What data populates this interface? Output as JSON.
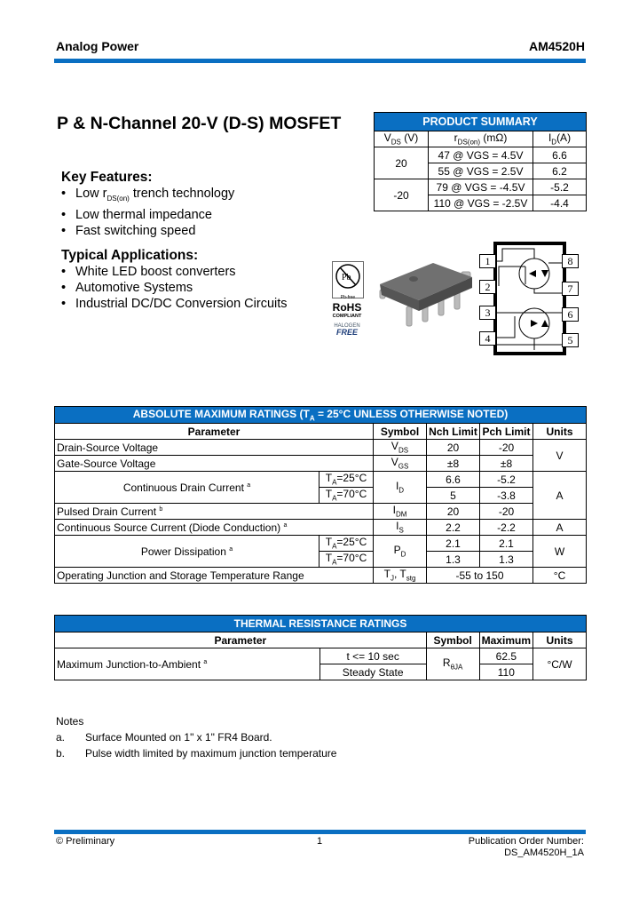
{
  "header": {
    "company": "Analog Power",
    "part": "AM4520H"
  },
  "title": "P & N-Channel 20-V (D-S) MOSFET",
  "key_features": {
    "heading": "Key Features:",
    "items": [
      "Low rDS(on) trench technology",
      "Low thermal impedance",
      "Fast switching speed"
    ]
  },
  "applications": {
    "heading": "Typical Applications:",
    "items": [
      "White LED boost converters",
      "Automotive Systems",
      "Industrial DC/DC Conversion Circuits"
    ]
  },
  "product_summary": {
    "title": "PRODUCT SUMMARY",
    "headers": [
      "VDS (V)",
      "rDS(on) (mΩ)",
      "ID(A)"
    ],
    "groups": [
      {
        "vds": "20",
        "rows": [
          [
            "47 @ VGS = 4.5V",
            "6.6"
          ],
          [
            "55 @ VGS = 2.5V",
            "6.2"
          ]
        ]
      },
      {
        "vds": "-20",
        "rows": [
          [
            "79 @ VGS = -4.5V",
            "-5.2"
          ],
          [
            "110 @ VGS = -2.5V",
            "-4.4"
          ]
        ]
      }
    ]
  },
  "badges": {
    "pb_free": "Pb-free",
    "rohs": "RoHS",
    "compliant": "COMPLIANT",
    "halogen": "HALOGEN",
    "free": "FREE"
  },
  "pins": [
    "1",
    "2",
    "3",
    "4",
    "5",
    "6",
    "7",
    "8"
  ],
  "abs_max": {
    "title": "ABSOLUTE MAXIMUM RATINGS (TA = 25°C UNLESS OTHERWISE NOTED)",
    "headers": [
      "Parameter",
      "Symbol",
      "Nch Limit",
      "Pch Limit",
      "Units"
    ],
    "rows": [
      {
        "param": "Drain-Source Voltage",
        "symbol": "VDS",
        "nch": "20",
        "pch": "-20"
      },
      {
        "param": "Gate-Source Voltage",
        "symbol": "VGS",
        "nch": "±8",
        "pch": "±8"
      },
      {
        "param": "Continuous Drain Current a",
        "cond": [
          "TA=25°C",
          "TA=70°C"
        ],
        "symbol": "ID",
        "nch": [
          "6.6",
          "5"
        ],
        "pch": [
          "-5.2",
          "-3.8"
        ]
      },
      {
        "param": "Pulsed Drain Current b",
        "symbol": "IDM",
        "nch": "20",
        "pch": "-20"
      },
      {
        "param": "Continuous Source Current (Diode Conduction) a",
        "symbol": "IS",
        "nch": "2.2",
        "pch": "-2.2",
        "unit": "A"
      },
      {
        "param": "Power Dissipation a",
        "cond": [
          "TA=25°C",
          "TA=70°C"
        ],
        "symbol": "PD",
        "nch": [
          "2.1",
          "1.3"
        ],
        "pch": [
          "2.1",
          "1.3"
        ],
        "unit": "W"
      },
      {
        "param": "Operating Junction and Storage Temperature Range",
        "symbol": "TJ, Tstg",
        "range": "-55 to 150",
        "unit": "°C"
      }
    ],
    "unit_v": "V",
    "unit_a": "A"
  },
  "thermal": {
    "title": "THERMAL RESISTANCE RATINGS",
    "headers": [
      "Parameter",
      "Symbol",
      "Maximum",
      "Units"
    ],
    "param": "Maximum Junction-to-Ambient a",
    "cond": [
      "t <= 10 sec",
      "Steady State"
    ],
    "symbol": "RθJA",
    "max": [
      "62.5",
      "110"
    ],
    "unit": "°C/W"
  },
  "notes": {
    "heading": "Notes",
    "items": [
      {
        "mark": "a.",
        "text": "Surface Mounted on 1\" x 1\" FR4 Board."
      },
      {
        "mark": "b.",
        "text": "Pulse width limited by maximum junction temperature"
      }
    ]
  },
  "footer": {
    "left": "© Preliminary",
    "page": "1",
    "right1": "Publication Order Number:",
    "right2": "DS_AM4520H_1A"
  },
  "colors": {
    "accent": "#0a6fc2"
  }
}
